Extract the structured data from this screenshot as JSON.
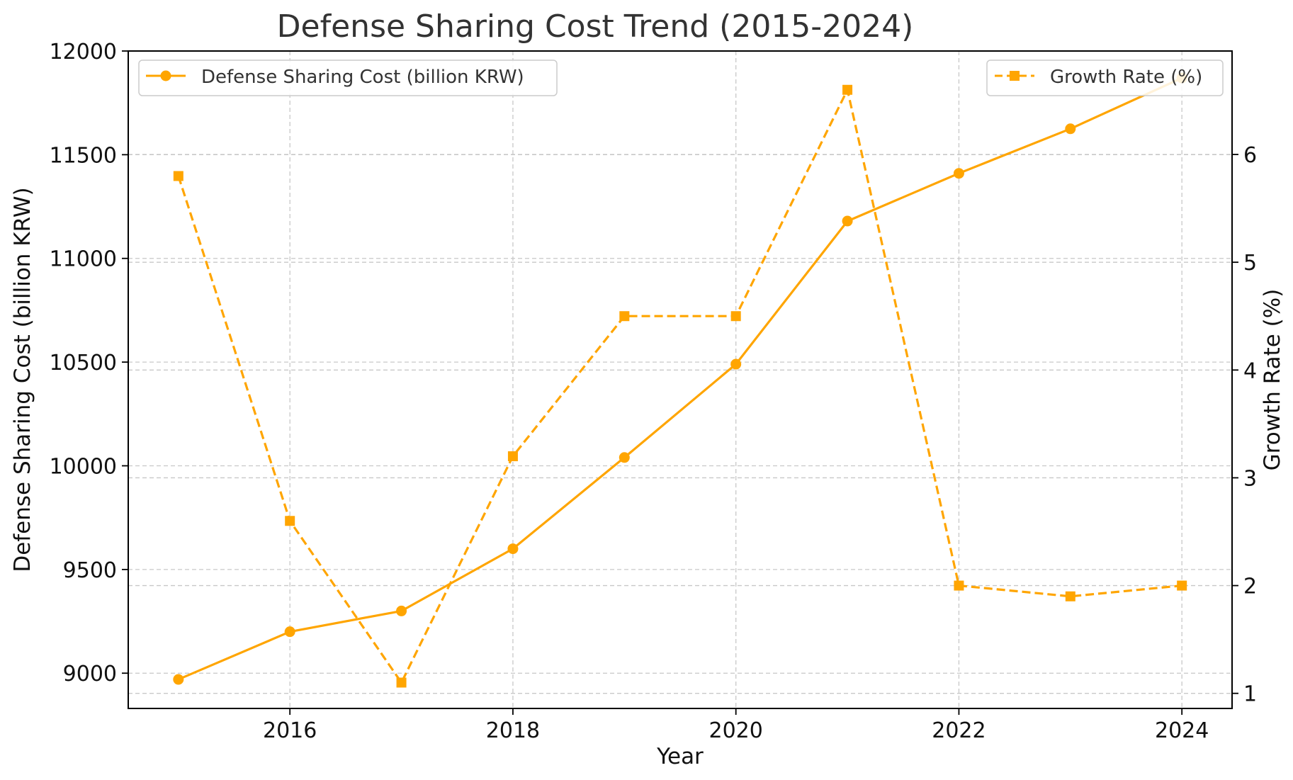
{
  "chart_data": {
    "type": "line",
    "title": "Defense Sharing Cost Trend (2015-2024)",
    "xlabel": "Year",
    "ylabel": "Defense Sharing Cost (billion KRW)",
    "y2label": "Growth Rate (%)",
    "x": [
      2015,
      2016,
      2017,
      2018,
      2019,
      2020,
      2021,
      2022,
      2023,
      2024
    ],
    "xlim": [
      2014.55,
      2024.45
    ],
    "xticks": [
      2016,
      2018,
      2020,
      2022,
      2024
    ],
    "xtick_labels": [
      "2016",
      "2018",
      "2020",
      "2022",
      "2024"
    ],
    "ylim": [
      8830,
      12000
    ],
    "yticks": [
      9000,
      9500,
      10000,
      10500,
      11000,
      11500,
      12000
    ],
    "ytick_labels": [
      "9000",
      "9500",
      "10000",
      "10500",
      "11000",
      "11500",
      "12000"
    ],
    "y2lim": [
      0.86,
      6.96
    ],
    "y2ticks": [
      1,
      2,
      3,
      4,
      5,
      6
    ],
    "y2tick_labels": [
      "1",
      "2",
      "3",
      "4",
      "5",
      "6"
    ],
    "grid": true,
    "series": [
      {
        "name": "Defense Sharing Cost (billion KRW)",
        "axis": "left",
        "style": "solid",
        "marker": "circle",
        "color": "#FFA500",
        "legend_position": "top-left",
        "values": [
          8970,
          9200,
          9300,
          9600,
          10040,
          10490,
          11180,
          11410,
          11625,
          11870
        ]
      },
      {
        "name": "Growth Rate (%)",
        "axis": "right",
        "style": "dashed",
        "marker": "square",
        "color": "#FFA500",
        "legend_position": "top-right",
        "values": [
          5.8,
          2.6,
          1.1,
          3.2,
          4.5,
          4.5,
          6.6,
          2.0,
          1.9,
          2.0
        ]
      }
    ]
  }
}
